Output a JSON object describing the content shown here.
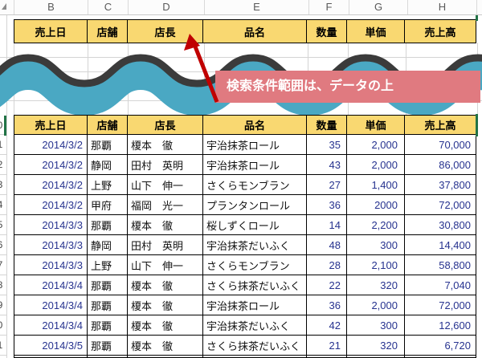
{
  "colors": {
    "header_fill": "#F9D871",
    "grid_line": "#D4D4D4",
    "cell_border": "#000000",
    "numeric_text": "#26328F",
    "jp_text": "#111111",
    "wave_teal": "#4AA8C3",
    "wave_dark": "#3B3B3B",
    "callout_bg": "#E07A80",
    "callout_text": "#FFFFFF",
    "arrow_red": "#C00000",
    "selection_green": "#217346",
    "column_letter_text": "#595959"
  },
  "column_letters": [
    "B",
    "C",
    "D",
    "E",
    "F",
    "G",
    "H"
  ],
  "criteria_header": {
    "labels": [
      "売上日",
      "店舗",
      "店長",
      "品名",
      "数量",
      "単価",
      "売上高"
    ]
  },
  "callout": {
    "text": "検索条件範囲は、データの上"
  },
  "table": {
    "headers": [
      "売上日",
      "店舗",
      "店長",
      "品名",
      "数量",
      "単価",
      "売上高"
    ],
    "rows": [
      [
        "2014/3/2",
        "那覇",
        "榎本　徹",
        "宇治抹茶ロール",
        "35",
        "2,000",
        "70,000"
      ],
      [
        "2014/3/2",
        "静岡",
        "田村　英明",
        "宇治抹茶ロール",
        "43",
        "2,000",
        "86,000"
      ],
      [
        "2014/3/2",
        "上野",
        "山下　伸一",
        "さくらモンブラン",
        "27",
        "1,400",
        "37,800"
      ],
      [
        "2014/3/2",
        "甲府",
        "福岡　光一",
        "プランタンロール",
        "36",
        "2000",
        "72,000"
      ],
      [
        "2014/3/3",
        "那覇",
        "榎本　徹",
        "桜しずくロール",
        "14",
        "2,200",
        "30,800"
      ],
      [
        "2014/3/3",
        "静岡",
        "田村　英明",
        "宇治抹茶だいふく",
        "48",
        "300",
        "14,400"
      ],
      [
        "2014/3/3",
        "上野",
        "山下　伸一",
        "さくらモンブラン",
        "28",
        "2,100",
        "58,800"
      ],
      [
        "2014/3/4",
        "那覇",
        "榎本　徹",
        "さくら抹茶だいふく",
        "22",
        "320",
        "7,040"
      ],
      [
        "2014/3/4",
        "那覇",
        "榎本　徹",
        "宇治抹茶ロール",
        "36",
        "2,000",
        "72,000"
      ],
      [
        "2014/3/4",
        "那覇",
        "榎本　徹",
        "宇治抹茶だいふく",
        "42",
        "300",
        "12,600"
      ],
      [
        "2014/3/5",
        "那覇",
        "榎本　徹",
        "さくら抹茶だいふく",
        "21",
        "320",
        "6,720"
      ]
    ]
  },
  "row_strip": {
    "visible_digits": [
      "0",
      "1",
      "2",
      "3",
      "4",
      "5",
      "6",
      "7",
      "8",
      "9",
      "0",
      "1"
    ]
  }
}
